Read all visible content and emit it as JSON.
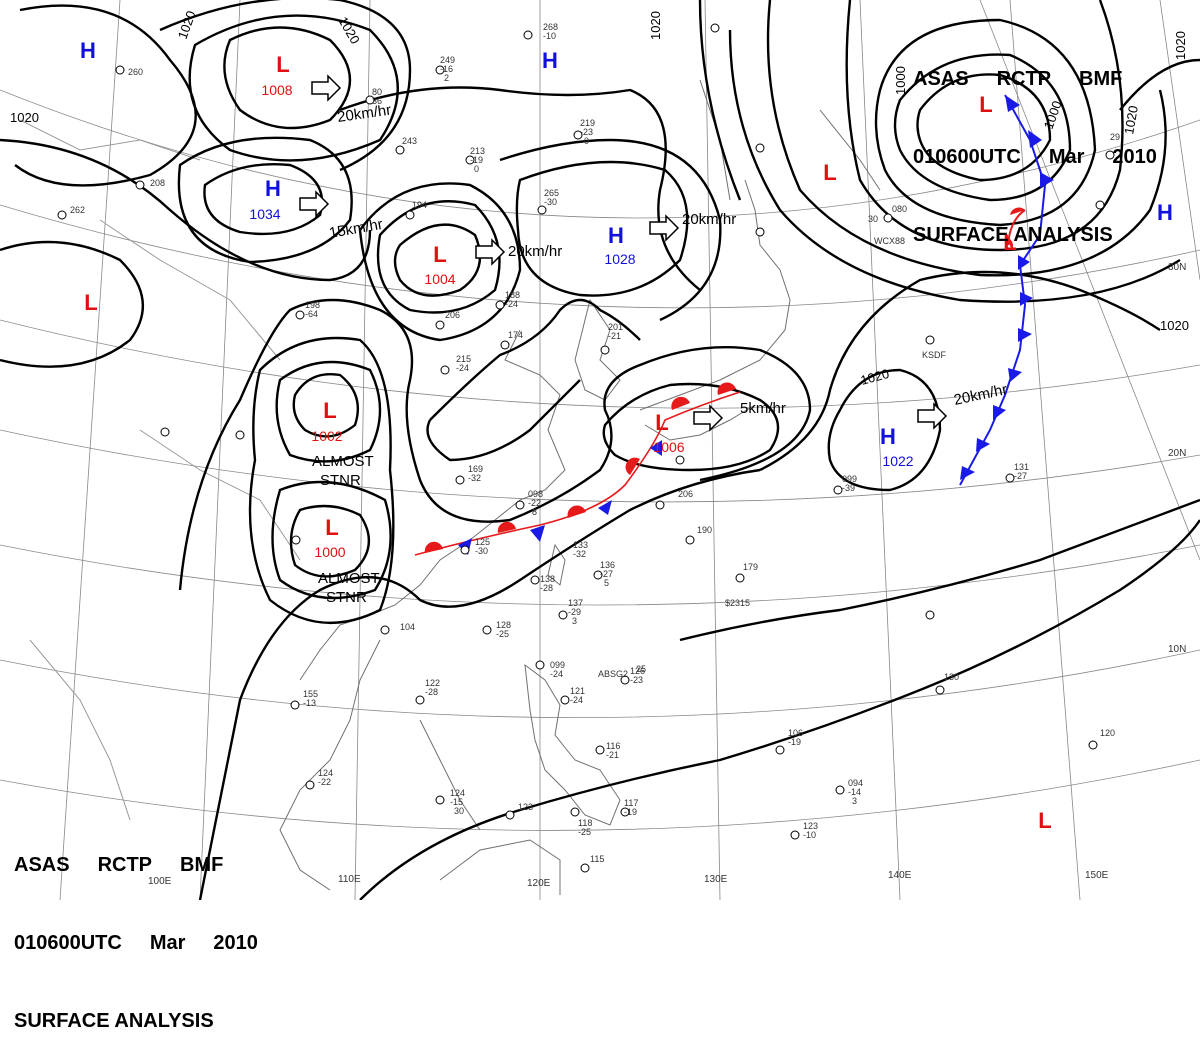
{
  "header": {
    "line1": [
      "ASAS",
      "RCTP",
      "BMF"
    ],
    "line2": [
      "010600UTC",
      "Mar",
      "2010"
    ],
    "line3": "SURFACE ANALYSIS"
  },
  "pressure_systems": [
    {
      "type": "H",
      "value": ""
    },
    {
      "type": "L",
      "value": "1008"
    },
    {
      "type": "H",
      "value": ""
    },
    {
      "type": "H",
      "value": "1034"
    },
    {
      "type": "L",
      "value": "1004"
    },
    {
      "type": "H",
      "value": "1028"
    },
    {
      "type": "L",
      "value": ""
    },
    {
      "type": "L",
      "value": "1002"
    },
    {
      "type": "L",
      "value": "1000"
    },
    {
      "type": "L",
      "value": "1006"
    },
    {
      "type": "H",
      "value": "1022"
    },
    {
      "type": "L",
      "value": ""
    },
    {
      "type": "L",
      "value": ""
    },
    {
      "type": "L",
      "value": ""
    },
    {
      "type": "H",
      "value": ""
    },
    {
      "type": "L",
      "value": ""
    }
  ],
  "motion_labels": [
    "20km/hr",
    "15km/hr",
    "20km/hr",
    "20km/hr",
    "5km/hr",
    "20km/hr"
  ],
  "stationary_notes": [
    "ALMOST",
    "STNR",
    "ALMOST",
    "STNR"
  ],
  "isobar_labels": [
    "1020",
    "1020",
    "1020",
    "1020",
    "1000",
    "1000",
    "1020",
    "1020",
    "1020",
    "1020"
  ],
  "longitude_labels": [
    "110E",
    "120E",
    "130E",
    "140E",
    "150E",
    "100E"
  ],
  "latitude_labels": [
    "30N",
    "20N",
    "10N"
  ],
  "station_data": [
    {
      "top": "260",
      "mid": "",
      "bot": ""
    },
    {
      "top": "249",
      "mid": "-16",
      "bot": "2"
    },
    {
      "top": "268",
      "mid": "-10",
      "bot": ""
    },
    {
      "top": "80",
      "mid": "36",
      "bot": ""
    },
    {
      "top": "219",
      "mid": "-23",
      "bot": "0"
    },
    {
      "top": "213",
      "mid": "-19",
      "bot": "0"
    },
    {
      "top": "243",
      "mid": "",
      "bot": ""
    },
    {
      "top": "208",
      "mid": "",
      "bot": ""
    },
    {
      "top": "265",
      "mid": "-30",
      "bot": ""
    },
    {
      "top": "262",
      "mid": "",
      "bot": ""
    },
    {
      "top": "194",
      "mid": "",
      "bot": ""
    },
    {
      "top": "188",
      "mid": "-24",
      "bot": ""
    },
    {
      "top": "198",
      "mid": "-64",
      "bot": ""
    },
    {
      "top": "206",
      "mid": "",
      "bot": ""
    },
    {
      "top": "174",
      "mid": "",
      "bot": ""
    },
    {
      "top": "215",
      "mid": "-24",
      "bot": ""
    },
    {
      "top": "201",
      "mid": "-21",
      "bot": ""
    },
    {
      "top": "169",
      "mid": "-32",
      "bot": ""
    },
    {
      "top": "098",
      "mid": "-22",
      "bot": "8"
    },
    {
      "top": "125",
      "mid": "-30",
      "bot": ""
    },
    {
      "top": "133",
      "mid": "-32",
      "bot": ""
    },
    {
      "top": "138",
      "mid": "-28",
      "bot": ""
    },
    {
      "top": "136",
      "mid": "-27",
      "bot": "5"
    },
    {
      "top": "137",
      "mid": "-29",
      "bot": "3"
    },
    {
      "top": "128",
      "mid": "-25",
      "bot": ""
    },
    {
      "top": "206",
      "mid": "",
      "bot": ""
    },
    {
      "top": "190",
      "mid": "",
      "bot": ""
    },
    {
      "top": "179",
      "mid": "",
      "bot": ""
    },
    {
      "top": "099",
      "mid": "-39",
      "bot": ""
    },
    {
      "top": "131",
      "mid": "-27",
      "bot": ""
    },
    {
      "top": "104",
      "mid": "",
      "bot": ""
    },
    {
      "top": "122",
      "mid": "-28",
      "bot": ""
    },
    {
      "top": "155",
      "mid": "-13",
      "bot": ""
    },
    {
      "top": "099",
      "mid": "-24",
      "bot": ""
    },
    {
      "top": "126",
      "mid": "-23",
      "bot": ""
    },
    {
      "top": "121",
      "mid": "-24",
      "bot": ""
    },
    {
      "top": "116",
      "mid": "-21",
      "bot": ""
    },
    {
      "top": "124",
      "mid": "-22",
      "bot": ""
    },
    {
      "top": "124",
      "mid": "-15",
      "bot": "30"
    },
    {
      "top": "123",
      "mid": "",
      "bot": ""
    },
    {
      "top": "118",
      "mid": "-25",
      "bot": ""
    },
    {
      "top": "117",
      "mid": "-19",
      "bot": ""
    },
    {
      "top": "115",
      "mid": "",
      "bot": ""
    },
    {
      "top": "106",
      "mid": "-19",
      "bot": ""
    },
    {
      "top": "094",
      "mid": "-14",
      "bot": "3"
    },
    {
      "top": "123",
      "mid": "-10",
      "bot": ""
    },
    {
      "top": "120",
      "mid": "",
      "bot": ""
    },
    {
      "top": "130",
      "mid": "",
      "bot": ""
    },
    {
      "top": "080",
      "mid": "",
      "bot": ""
    },
    {
      "top": "30",
      "mid": "",
      "bot": ""
    },
    {
      "top": "29",
      "mid": "",
      "bot": ""
    },
    {
      "top": "25",
      "mid": "",
      "bot": ""
    }
  ],
  "station_ids": [
    "ABSG2",
    "WCX88",
    "KSDF",
    "$2315"
  ],
  "colors": {
    "high": "#1010e0",
    "low": "#e01010",
    "isobar": "#000000",
    "grid": "#888888",
    "coast": "#707070",
    "cold_front": "#1a1ae6",
    "warm_front": "#e61a1a",
    "background": "#ffffff"
  }
}
